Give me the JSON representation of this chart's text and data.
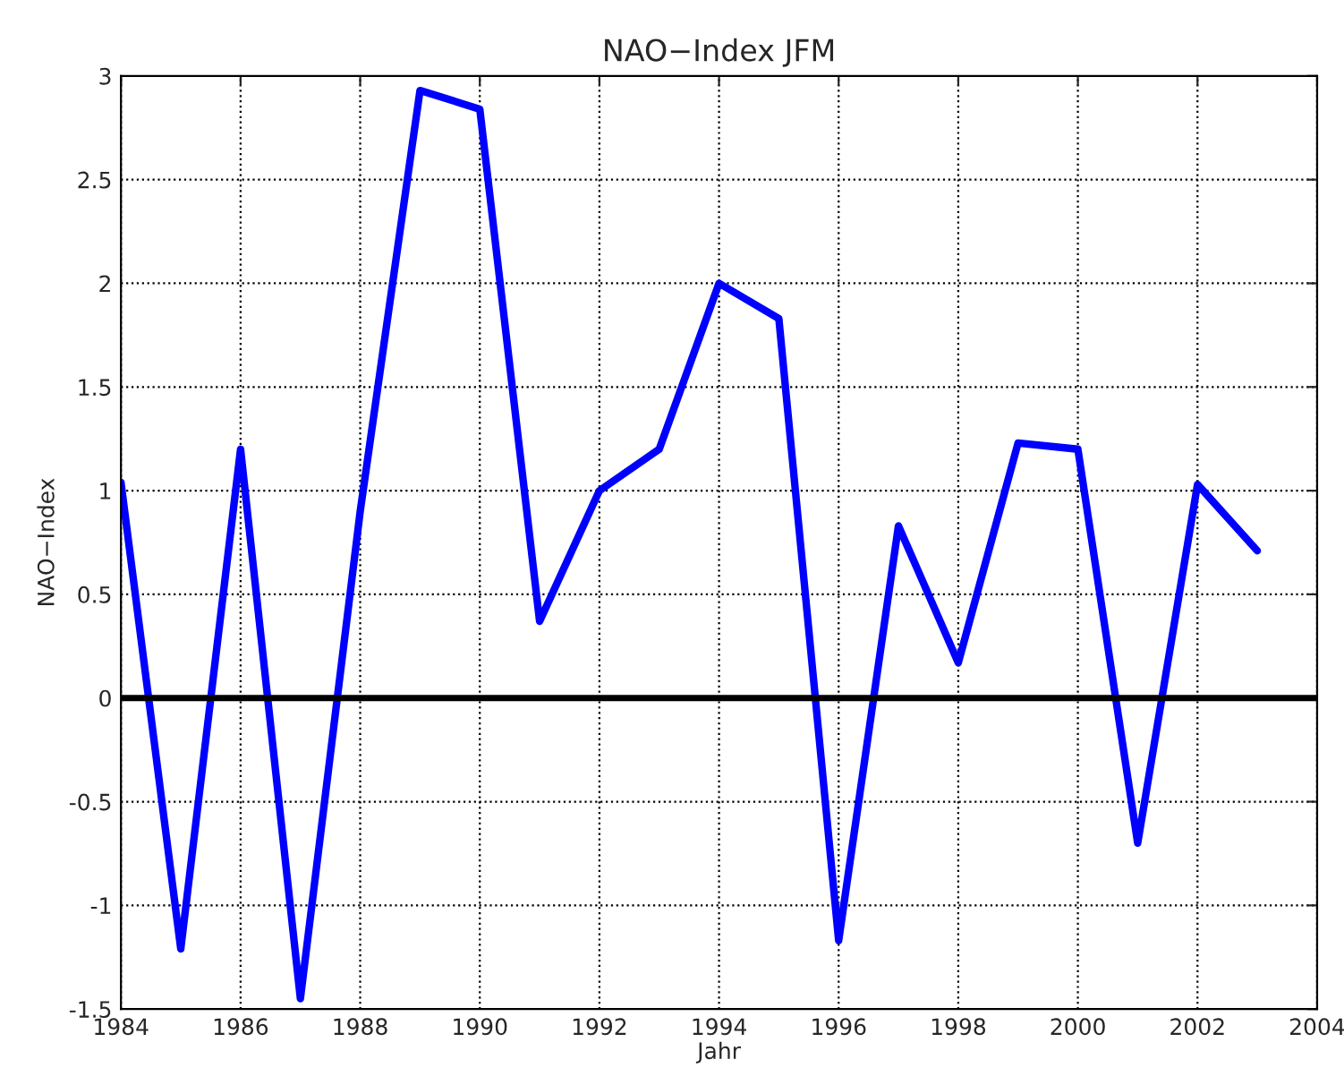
{
  "chart_data": {
    "type": "line",
    "title": "NAO−Index JFM",
    "xlabel": "Jahr",
    "ylabel": "NAO−Index",
    "x": [
      1984,
      1985,
      1986,
      1987,
      1988,
      1989,
      1990,
      1991,
      1992,
      1993,
      1994,
      1995,
      1996,
      1997,
      1998,
      1999,
      2000,
      2001,
      2002,
      2003
    ],
    "series": [
      {
        "color": "#0000ff",
        "values": [
          1.04,
          -1.21,
          1.2,
          -1.45,
          0.9,
          2.93,
          2.84,
          0.37,
          1.0,
          1.2,
          2.0,
          1.83,
          -1.17,
          0.83,
          0.17,
          1.23,
          1.2,
          -0.7,
          1.03,
          0.71
        ]
      }
    ],
    "xlim": [
      1984,
      2004
    ],
    "xticks": [
      1984,
      1986,
      1988,
      1990,
      1992,
      1994,
      1996,
      1998,
      2000,
      2002,
      2004
    ],
    "ylim": [
      -1.5,
      3
    ],
    "yticks": [
      -1.5,
      -1,
      -0.5,
      0,
      0.5,
      1,
      1.5,
      2,
      2.5,
      3
    ],
    "ref_lines": [
      {
        "axis": "y",
        "value": 0,
        "color": "#000000"
      }
    ],
    "grid": true,
    "line_style": "solid",
    "marker": "none",
    "legend": false
  }
}
